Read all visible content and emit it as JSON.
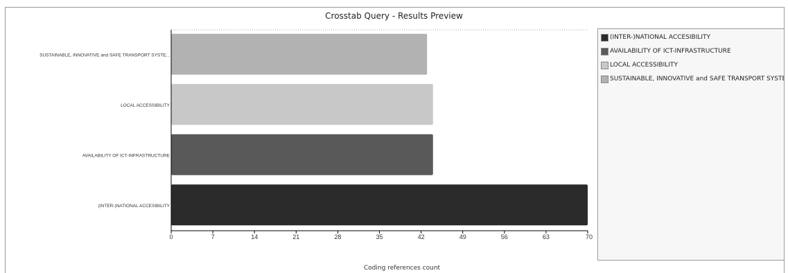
{
  "chart_data": {
    "type": "bar",
    "orientation": "horizontal",
    "title": "Crosstab Query - Results Preview",
    "xlabel": "Coding references count",
    "ylabel": "",
    "xlim": [
      0,
      70
    ],
    "xticks": [
      "0",
      "7",
      "14",
      "21",
      "28",
      "35",
      "42",
      "49",
      "56",
      "63",
      "70"
    ],
    "categories": [
      "SUSTAINABLE, INNOVATIVE and SAFE TRANSPORT SYSTE...",
      "LOCAL ACCESSIBILITY",
      "AVAILABILITY OF ICT-INFRASTRUCTURE",
      "(INTER-)NATIONAL ACCESIBILITY"
    ],
    "values": [
      43,
      44,
      44,
      70
    ],
    "colors": [
      "#b2b2b2",
      "#c8c8c8",
      "#595959",
      "#2b2b2b"
    ],
    "grid": false,
    "legend_position": "right",
    "legend": [
      {
        "label": "(INTER-)NATIONAL ACCESIBILITY",
        "color": "#2b2b2b"
      },
      {
        "label": "AVAILABILITY OF ICT-INFRASTRUCTURE",
        "color": "#595959"
      },
      {
        "label": "LOCAL ACCESSIBILITY",
        "color": "#c8c8c8"
      },
      {
        "label": "SUSTAINABLE, INNOVATIVE and SAFE TRANSPORT SYSTEMS",
        "color": "#b2b2b2"
      }
    ]
  }
}
